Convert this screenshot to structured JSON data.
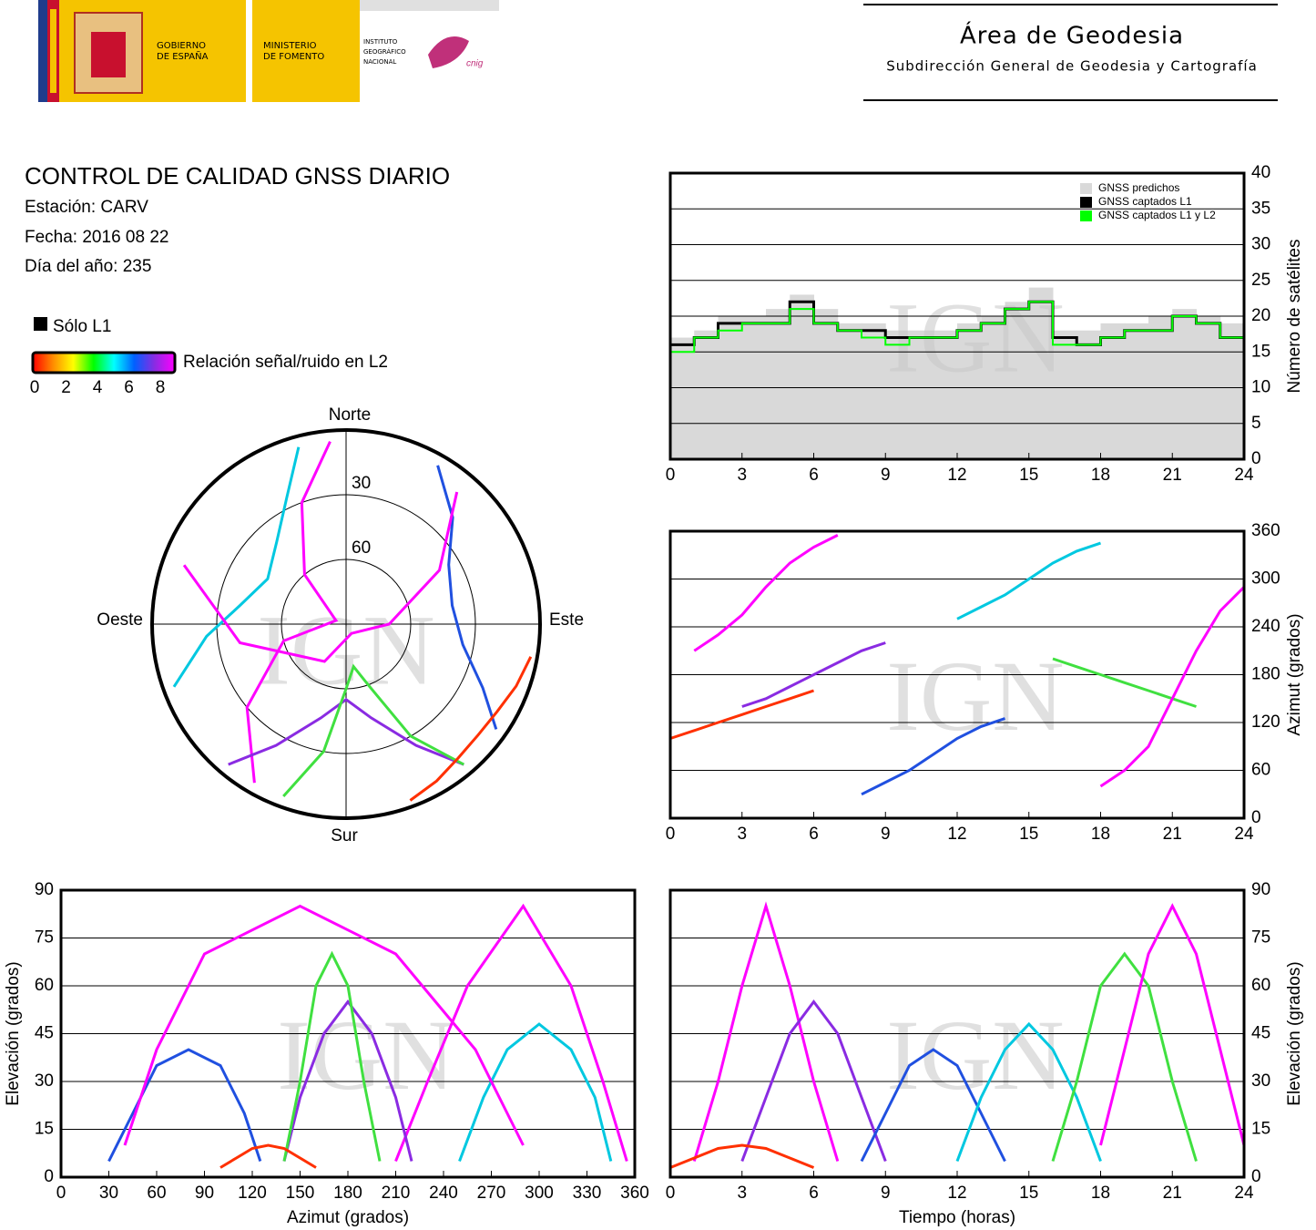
{
  "header": {
    "government": [
      "GOBIERNO",
      "DE ESPAÑA"
    ],
    "ministry": [
      "MINISTERIO",
      "DE FOMENTO"
    ],
    "institute": [
      "INSTITUTO",
      "GEOGRÁFICO",
      "NACIONAL"
    ],
    "cnig": "cnig",
    "area": "Área de Geodesia",
    "subdirection": "Subdirección General de Geodesia y Cartografía"
  },
  "report": {
    "title": "CONTROL DE CALIDAD GNSS DIARIO",
    "station": "Estación: CARV",
    "date": "Fecha: 2016 08 22",
    "day": "Día del año: 235",
    "l1_only": "Sólo L1",
    "snr_label": "Relación señal/ruido en L2",
    "snr_ticks": [
      0,
      2,
      4,
      6,
      8
    ],
    "snr_colors": [
      "#ff0000",
      "#ff8c00",
      "#ffff00",
      "#00ff00",
      "#00ffff",
      "#0060ff",
      "#8a2be2",
      "#ff00ff"
    ]
  },
  "watermark": "IGN",
  "chart_data": [
    {
      "type": "polar",
      "labels": {
        "north": "Norte",
        "south": "Sur",
        "east": "Este",
        "west": "Oeste"
      },
      "rlim": [
        90,
        0
      ],
      "rticks": [
        30,
        60
      ],
      "series": [
        {
          "color": "#ff00ff",
          "azimuth": [
            210,
            230,
            255,
            290,
            320,
            340,
            355
          ],
          "elevation": [
            5,
            30,
            60,
            85,
            60,
            30,
            5
          ]
        },
        {
          "color": "#8a2be2",
          "azimuth": [
            140,
            150,
            165,
            180,
            195,
            210,
            220
          ],
          "elevation": [
            5,
            25,
            45,
            55,
            45,
            25,
            5
          ]
        },
        {
          "color": "#2050e0",
          "azimuth": [
            30,
            45,
            60,
            80,
            100,
            115,
            125
          ],
          "elevation": [
            5,
            20,
            35,
            40,
            35,
            20,
            5
          ]
        },
        {
          "color": "#00c8e0",
          "azimuth": [
            250,
            265,
            280,
            300,
            320,
            335,
            345
          ],
          "elevation": [
            5,
            25,
            40,
            48,
            40,
            25,
            5
          ]
        },
        {
          "color": "#40e040",
          "azimuth": [
            200,
            190,
            180,
            170,
            160,
            150,
            140
          ],
          "elevation": [
            5,
            30,
            60,
            70,
            60,
            30,
            5
          ]
        },
        {
          "color": "#ff00ff",
          "azimuth": [
            40,
            60,
            90,
            150,
            210,
            260,
            290
          ],
          "elevation": [
            10,
            40,
            70,
            85,
            70,
            40,
            10
          ]
        },
        {
          "color": "#ff3000",
          "azimuth": [
            100,
            110,
            120,
            130,
            140,
            150,
            160
          ],
          "elevation": [
            3,
            6,
            9,
            10,
            9,
            6,
            3
          ]
        }
      ]
    },
    {
      "type": "step",
      "x": [
        0,
        1,
        2,
        3,
        4,
        5,
        6,
        7,
        8,
        9,
        10,
        11,
        12,
        13,
        14,
        15,
        16,
        17,
        18,
        19,
        20,
        21,
        22,
        23
      ],
      "xlim": [
        0,
        24
      ],
      "xticks": [
        0,
        3,
        6,
        9,
        12,
        15,
        18,
        21,
        24
      ],
      "ylim": [
        0,
        40
      ],
      "yticks": [
        0,
        5,
        10,
        15,
        20,
        25,
        30,
        35,
        40
      ],
      "ylabel": "Número de satélites",
      "grid": true,
      "legend": "upper right",
      "series": [
        {
          "name": "GNSS predichos",
          "color": "#d9d9d9",
          "values": [
            17,
            18,
            20,
            20,
            21,
            23,
            21,
            19,
            19,
            18,
            18,
            18,
            19,
            20,
            22,
            24,
            18,
            18,
            19,
            19,
            20,
            21,
            20,
            19
          ]
        },
        {
          "name": "GNSS captados L1",
          "color": "#000000",
          "values": [
            16,
            17,
            19,
            19,
            19,
            22,
            19,
            18,
            18,
            17,
            17,
            17,
            18,
            19,
            21,
            22,
            17,
            16,
            17,
            18,
            18,
            20,
            19,
            17
          ]
        },
        {
          "name": "GNSS captados L1 y L2",
          "color": "#00ff00",
          "values": [
            15,
            17,
            18,
            19,
            19,
            21,
            19,
            18,
            17,
            16,
            17,
            17,
            18,
            19,
            21,
            22,
            16,
            16,
            17,
            18,
            18,
            20,
            19,
            17
          ]
        }
      ]
    },
    {
      "type": "track",
      "xlim": [
        0,
        24
      ],
      "xticks": [
        0,
        3,
        6,
        9,
        12,
        15,
        18,
        21,
        24
      ],
      "ylim": [
        0,
        360
      ],
      "yticks": [
        0,
        60,
        120,
        180,
        240,
        300,
        360
      ],
      "ylabel": "Azimut (grados)",
      "grid": true,
      "series": [
        {
          "color": "#ff00ff",
          "x": [
            1,
            2,
            3,
            4,
            5,
            6,
            7
          ],
          "values": [
            210,
            230,
            255,
            290,
            320,
            340,
            355
          ]
        },
        {
          "color": "#8a2be2",
          "x": [
            3,
            4,
            5,
            6,
            7,
            8,
            9
          ],
          "values": [
            140,
            150,
            165,
            180,
            195,
            210,
            220
          ]
        },
        {
          "color": "#2050e0",
          "x": [
            8,
            9,
            10,
            11,
            12,
            13,
            14
          ],
          "values": [
            30,
            45,
            60,
            80,
            100,
            115,
            125
          ]
        },
        {
          "color": "#00c8e0",
          "x": [
            12,
            13,
            14,
            15,
            16,
            17,
            18
          ],
          "values": [
            250,
            265,
            280,
            300,
            320,
            335,
            345
          ]
        },
        {
          "color": "#40e040",
          "x": [
            16,
            17,
            18,
            19,
            20,
            21,
            22
          ],
          "values": [
            200,
            190,
            180,
            170,
            160,
            150,
            140
          ]
        },
        {
          "color": "#ff00ff",
          "x": [
            18,
            19,
            20,
            21,
            22,
            23,
            24
          ],
          "values": [
            40,
            60,
            90,
            150,
            210,
            260,
            290
          ]
        },
        {
          "color": "#ff3000",
          "x": [
            0,
            1,
            2,
            3,
            4,
            5,
            6
          ],
          "values": [
            100,
            110,
            120,
            130,
            140,
            150,
            160
          ]
        }
      ]
    },
    {
      "type": "track",
      "xlim": [
        0,
        360
      ],
      "xticks": [
        0,
        30,
        60,
        90,
        120,
        150,
        180,
        210,
        240,
        270,
        300,
        330,
        360
      ],
      "ylim": [
        0,
        90
      ],
      "yticks": [
        0,
        15,
        30,
        45,
        60,
        75,
        90
      ],
      "xlabel": "Azimut (grados)",
      "ylabel": "Elevación (grados)",
      "grid": true,
      "series": [
        {
          "color": "#ff00ff",
          "x": [
            210,
            230,
            255,
            290,
            320,
            340,
            355
          ],
          "values": [
            5,
            30,
            60,
            85,
            60,
            30,
            5
          ]
        },
        {
          "color": "#8a2be2",
          "x": [
            140,
            150,
            165,
            180,
            195,
            210,
            220
          ],
          "values": [
            5,
            25,
            45,
            55,
            45,
            25,
            5
          ]
        },
        {
          "color": "#2050e0",
          "x": [
            30,
            45,
            60,
            80,
            100,
            115,
            125
          ],
          "values": [
            5,
            20,
            35,
            40,
            35,
            20,
            5
          ]
        },
        {
          "color": "#00c8e0",
          "x": [
            250,
            265,
            280,
            300,
            320,
            335,
            345
          ],
          "values": [
            5,
            25,
            40,
            48,
            40,
            25,
            5
          ]
        },
        {
          "color": "#40e040",
          "x": [
            200,
            190,
            180,
            170,
            160,
            150,
            140
          ],
          "values": [
            5,
            30,
            60,
            70,
            60,
            30,
            5
          ]
        },
        {
          "color": "#ff00ff",
          "x": [
            40,
            60,
            90,
            150,
            210,
            260,
            290
          ],
          "values": [
            10,
            40,
            70,
            85,
            70,
            40,
            10
          ]
        },
        {
          "color": "#ff3000",
          "x": [
            100,
            110,
            120,
            130,
            140,
            150,
            160
          ],
          "values": [
            3,
            6,
            9,
            10,
            9,
            6,
            3
          ]
        }
      ]
    },
    {
      "type": "track",
      "xlim": [
        0,
        24
      ],
      "xticks": [
        0,
        3,
        6,
        9,
        12,
        15,
        18,
        21,
        24
      ],
      "ylim": [
        0,
        90
      ],
      "yticks": [
        0,
        15,
        30,
        45,
        60,
        75,
        90
      ],
      "xlabel": "Tiempo (horas)",
      "ylabel": "Elevación (grados)",
      "grid": true,
      "series": [
        {
          "color": "#ff00ff",
          "x": [
            1,
            2,
            3,
            4,
            5,
            6,
            7
          ],
          "values": [
            5,
            30,
            60,
            85,
            60,
            30,
            5
          ]
        },
        {
          "color": "#8a2be2",
          "x": [
            3,
            4,
            5,
            6,
            7,
            8,
            9
          ],
          "values": [
            5,
            25,
            45,
            55,
            45,
            25,
            5
          ]
        },
        {
          "color": "#2050e0",
          "x": [
            8,
            9,
            10,
            11,
            12,
            13,
            14
          ],
          "values": [
            5,
            20,
            35,
            40,
            35,
            20,
            5
          ]
        },
        {
          "color": "#00c8e0",
          "x": [
            12,
            13,
            14,
            15,
            16,
            17,
            18
          ],
          "values": [
            5,
            25,
            40,
            48,
            40,
            25,
            5
          ]
        },
        {
          "color": "#40e040",
          "x": [
            16,
            17,
            18,
            19,
            20,
            21,
            22
          ],
          "values": [
            5,
            30,
            60,
            70,
            60,
            30,
            5
          ]
        },
        {
          "color": "#ff00ff",
          "x": [
            18,
            19,
            20,
            21,
            22,
            23,
            24
          ],
          "values": [
            10,
            40,
            70,
            85,
            70,
            40,
            10
          ]
        },
        {
          "color": "#ff3000",
          "x": [
            0,
            1,
            2,
            3,
            4,
            5,
            6
          ],
          "values": [
            3,
            6,
            9,
            10,
            9,
            6,
            3
          ]
        }
      ]
    }
  ]
}
